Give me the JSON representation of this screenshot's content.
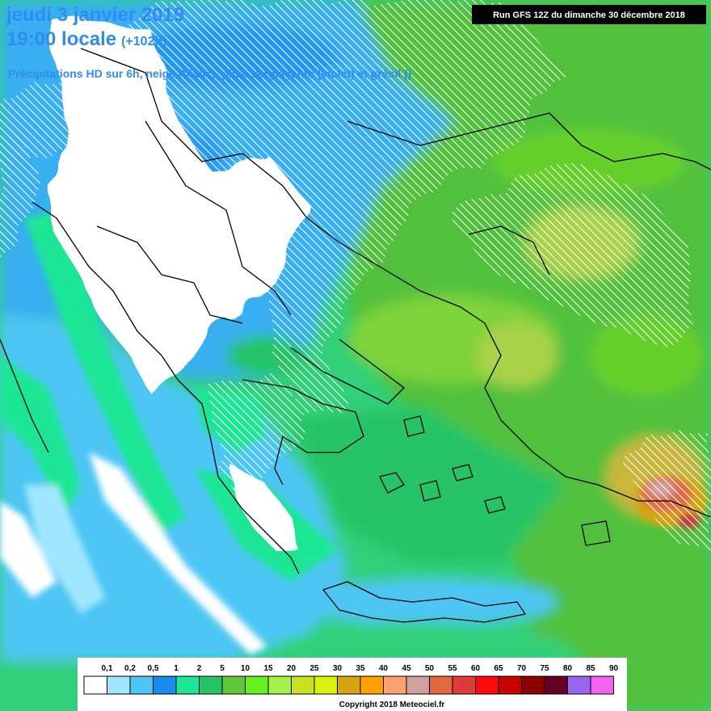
{
  "header": {
    "date_line": "jeudi 3 janvier 2019",
    "time_line": "19:00 locale",
    "lead_time": "(+102h)",
    "subtitle": "Précipitations HD sur 6h, neige (blanc), pluie verglaçante (violet) et grésil ()",
    "run_info": "Run GFS 12Z du dimanche 30 décembre 2018"
  },
  "legend": {
    "ticks": [
      "0,1",
      "0,2",
      "0,5",
      "1",
      "2",
      "5",
      "10",
      "15",
      "20",
      "25",
      "30",
      "35",
      "40",
      "45",
      "50",
      "55",
      "60",
      "65",
      "70",
      "75",
      "80",
      "85",
      "90"
    ],
    "colors": [
      "#ffffff",
      "#a0e6ff",
      "#4ec6f5",
      "#1a8cf0",
      "#1ce696",
      "#26c466",
      "#5cc83a",
      "#66f020",
      "#a6f04a",
      "#c6e220",
      "#dcf010",
      "#d6a40c",
      "#ffa200",
      "#ffa070",
      "#d0a0a0",
      "#e06a40",
      "#e03a3a",
      "#ff0a0a",
      "#c80000",
      "#8c0000",
      "#640028",
      "#9a64f0",
      "#f064f0"
    ]
  },
  "copyright": "Copyright 2018 Meteociel.fr"
}
